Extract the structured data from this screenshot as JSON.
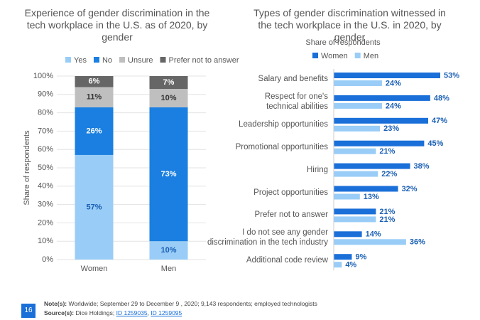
{
  "chart_data": [
    {
      "type": "stacked_bar",
      "title": "Experience of gender discrimination in the tech workplace in the U.S. as of 2020, by gender",
      "y_label": "Share of respondents",
      "categories": [
        "Women",
        "Men"
      ],
      "series": [
        {
          "name": "Yes",
          "color": "#99cdf7",
          "values": [
            57,
            10
          ],
          "value_labels": [
            "57%",
            "10%"
          ]
        },
        {
          "name": "No",
          "color": "#1a7fe0",
          "values": [
            26,
            73
          ],
          "value_labels": [
            "26%",
            "73%"
          ]
        },
        {
          "name": "Unsure",
          "color": "#bfbfbf",
          "values": [
            11,
            10
          ],
          "value_labels": [
            "11%",
            "10%"
          ]
        },
        {
          "name": "Prefer not to answer",
          "color": "#666666",
          "values": [
            6,
            7
          ],
          "value_labels": [
            "6%",
            "7%"
          ]
        }
      ],
      "ylim": [
        0,
        100
      ],
      "yticks": [
        {
          "value": 0,
          "label": "0%"
        },
        {
          "value": 10,
          "label": "10%"
        },
        {
          "value": 20,
          "label": "20%"
        },
        {
          "value": 30,
          "label": "30%"
        },
        {
          "value": 40,
          "label": "40%"
        },
        {
          "value": 50,
          "label": "50%"
        },
        {
          "value": 60,
          "label": "60%"
        },
        {
          "value": 70,
          "label": "70%"
        },
        {
          "value": 80,
          "label": "80%"
        },
        {
          "value": 90,
          "label": "90%"
        },
        {
          "value": 100,
          "label": "100%"
        }
      ],
      "grid": true
    },
    {
      "type": "grouped_hbar",
      "title": "Types of gender discrimination witnessed in the tech workplace in the U.S. in 2020, by gender",
      "subtitle": "Share of respondents",
      "categories": [
        "Salary and benefits",
        "Respect for one's\ntechnical abilities",
        "Leadership opportunities",
        "Promotional opportunities",
        "Hiring",
        "Project opportunities",
        "Prefer not to answer",
        "I do not see any gender\ndiscrimination in the tech industry",
        "Additional code review"
      ],
      "series": [
        {
          "name": "Women",
          "color": "#1a6fd8",
          "values": [
            53,
            48,
            47,
            45,
            38,
            32,
            21,
            14,
            9
          ],
          "value_labels": [
            "53%",
            "48%",
            "47%",
            "45%",
            "38%",
            "32%",
            "21%",
            "14%",
            "9%"
          ]
        },
        {
          "name": "Men",
          "color": "#99cdf7",
          "values": [
            24,
            24,
            23,
            21,
            22,
            13,
            21,
            36,
            4
          ],
          "value_labels": [
            "24%",
            "24%",
            "23%",
            "21%",
            "22%",
            "13%",
            "21%",
            "36%",
            "4%"
          ]
        }
      ]
    }
  ],
  "footer": {
    "page": "16",
    "note_label": "Note(s):",
    "note": "Worldwide; September 29 to December 9 , 2020; 9,143 respondents; employed technologists",
    "source_label": "Source(s):",
    "source": "Dice Holdings;",
    "links": [
      "ID 1259035",
      "ID 1259095"
    ]
  }
}
